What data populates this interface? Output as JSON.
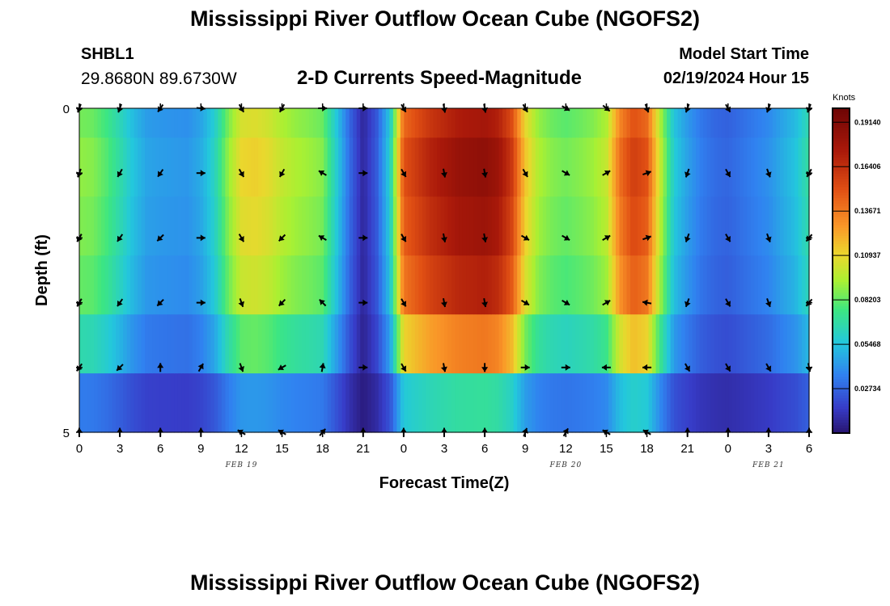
{
  "header": {
    "title": "Mississippi River Outflow Ocean Cube (NGOFS2)",
    "station": "SHBL1",
    "coordinates": "29.8680N  89.6730W",
    "subtitle": "2-D Currents Speed-Magnitude",
    "start_label": "Model Start Time",
    "start_time": "02/19/2024 Hour 15"
  },
  "footer": {
    "title": "Mississippi River Outflow Ocean Cube (NGOFS2)"
  },
  "chart_data": {
    "type": "heatmap",
    "title": "2-D Currents Speed-Magnitude",
    "xlabel": "Forecast Time(Z)",
    "ylabel": "Depth (ft)",
    "x": [
      0,
      3,
      6,
      9,
      12,
      15,
      18,
      21,
      24,
      27,
      30,
      33,
      36,
      39,
      42,
      45,
      48,
      51,
      54
    ],
    "x_tick_labels": [
      "0",
      "3",
      "6",
      "9",
      "12",
      "15",
      "18",
      "21",
      "0",
      "3",
      "6",
      "9",
      "12",
      "15",
      "18",
      "21",
      "0",
      "3",
      "6"
    ],
    "date_labels": [
      {
        "label": "FEB 19",
        "x": 12
      },
      {
        "label": "FEB 20",
        "x": 36
      },
      {
        "label": "FEB 21",
        "x": 51
      }
    ],
    "ylim": [
      0,
      5
    ],
    "y_tick_labels": [
      "0",
      "5"
    ],
    "depth_layers": [
      0,
      1,
      2,
      3,
      4,
      5
    ],
    "colorbar": {
      "title": "Knots",
      "min": 0.0,
      "max": 0.2,
      "tick_values": [
        0.1914,
        0.16406,
        0.13671,
        0.10937,
        0.08203,
        0.05468,
        0.02734
      ],
      "tick_labels": [
        "0.19140",
        "0.16406",
        "0.13671",
        "0.10937",
        "0.08203",
        "0.05468",
        "0.02734"
      ]
    },
    "time_profile": [
      [
        0,
        0.09
      ],
      [
        1,
        0.088
      ],
      [
        2,
        0.08
      ],
      [
        3,
        0.068
      ],
      [
        4,
        0.055
      ],
      [
        5,
        0.046
      ],
      [
        6,
        0.044
      ],
      [
        7,
        0.043
      ],
      [
        8,
        0.042
      ],
      [
        9,
        0.048
      ],
      [
        10,
        0.062
      ],
      [
        11,
        0.09
      ],
      [
        12,
        0.11
      ],
      [
        13,
        0.112
      ],
      [
        14,
        0.108
      ],
      [
        15,
        0.1
      ],
      [
        16,
        0.095
      ],
      [
        17,
        0.092
      ],
      [
        18,
        0.088
      ],
      [
        19,
        0.06
      ],
      [
        20,
        0.03
      ],
      [
        21,
        0.008
      ],
      [
        22,
        0.025
      ],
      [
        23,
        0.06
      ],
      [
        24,
        0.15
      ],
      [
        26,
        0.17
      ],
      [
        28,
        0.182
      ],
      [
        30,
        0.186
      ],
      [
        31,
        0.18
      ],
      [
        32,
        0.16
      ],
      [
        33,
        0.115
      ],
      [
        34,
        0.095
      ],
      [
        35,
        0.088
      ],
      [
        36,
        0.085
      ],
      [
        37,
        0.088
      ],
      [
        38,
        0.092
      ],
      [
        39,
        0.1
      ],
      [
        40,
        0.14
      ],
      [
        41,
        0.158
      ],
      [
        42,
        0.15
      ],
      [
        43,
        0.1
      ],
      [
        44,
        0.058
      ],
      [
        45,
        0.045
      ],
      [
        46,
        0.035
      ],
      [
        47,
        0.03
      ],
      [
        48,
        0.028
      ],
      [
        49,
        0.032
      ],
      [
        50,
        0.036
      ],
      [
        51,
        0.04
      ],
      [
        52,
        0.048
      ],
      [
        53,
        0.055
      ],
      [
        54,
        0.07
      ]
    ],
    "depth_factor": [
      0.95,
      1.0,
      0.97,
      0.92,
      0.74,
      0.38
    ],
    "arrow_times": [
      0,
      3,
      6,
      9,
      12,
      15,
      18,
      21,
      24,
      27,
      30,
      33,
      36,
      39,
      42,
      45,
      48,
      51,
      54
    ],
    "arrow_depths": [
      0,
      1,
      2,
      3,
      4,
      5
    ],
    "arrow_direction_deg": [
      [
        200,
        200,
        215,
        95,
        150,
        210,
        90,
        90,
        150,
        170,
        170,
        150,
        120,
        130,
        160,
        200,
        150,
        200,
        200
      ],
      [
        200,
        210,
        215,
        90,
        150,
        210,
        300,
        90,
        150,
        170,
        170,
        150,
        120,
        60,
        70,
        200,
        150,
        160,
        210
      ],
      [
        210,
        215,
        225,
        90,
        150,
        225,
        300,
        90,
        150,
        170,
        170,
        120,
        120,
        60,
        70,
        200,
        150,
        160,
        220
      ],
      [
        210,
        215,
        225,
        90,
        160,
        225,
        315,
        90,
        150,
        170,
        170,
        120,
        120,
        60,
        280,
        200,
        150,
        160,
        220
      ],
      [
        215,
        225,
        0,
        30,
        160,
        240,
        10,
        90,
        150,
        170,
        180,
        90,
        90,
        270,
        270,
        150,
        150,
        150,
        170
      ],
      [
        0,
        0,
        0,
        0,
        300,
        300,
        40,
        0,
        0,
        0,
        0,
        20,
        30,
        300,
        300,
        0,
        0,
        0,
        0
      ]
    ]
  }
}
